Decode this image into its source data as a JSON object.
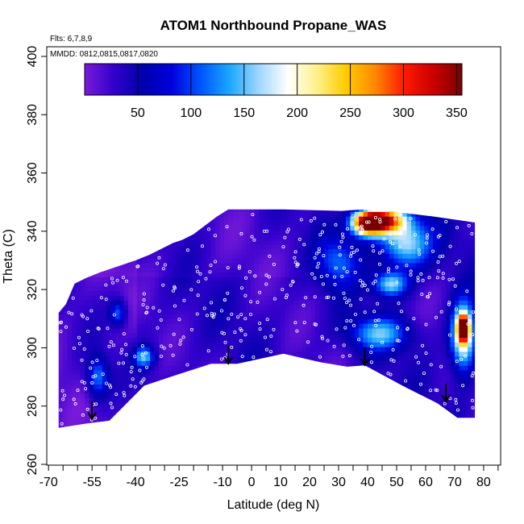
{
  "chart_data": {
    "type": "heatmap",
    "title": "ATOM1 Northbound Propane_WAS",
    "xlabel": "Latitude (deg N)",
    "ylabel": "Theta (C)",
    "xlim": [
      -70,
      85
    ],
    "ylim": [
      260,
      402
    ],
    "x_ticks": [
      "-70",
      "-55",
      "-40",
      "-25",
      "-10",
      "0",
      "10",
      "20",
      "30",
      "40",
      "50",
      "60",
      "70",
      "80"
    ],
    "x_tick_values": [
      -70,
      -55,
      -40,
      -25,
      -10,
      0,
      10,
      20,
      30,
      40,
      50,
      60,
      70,
      80
    ],
    "y_ticks": [
      "260",
      "280",
      "300",
      "320",
      "340",
      "360",
      "380",
      "400"
    ],
    "y_tick_values": [
      260,
      280,
      300,
      320,
      340,
      360,
      380,
      400
    ],
    "flights_label": "Flts: 6,7,8,9",
    "dates_label": "MMDD: 0812,0815,0817,0820",
    "colorbar": {
      "range": [
        0,
        355
      ],
      "ticks": [
        "50",
        "100",
        "150",
        "200",
        "250",
        "300",
        "350"
      ],
      "tick_values": [
        50,
        100,
        150,
        200,
        250,
        300,
        350
      ],
      "colors": [
        "#7a1bd9",
        "#3300cc",
        "#0000aa",
        "#0000dd",
        "#0055ff",
        "#1aa8ff",
        "#9fd6ff",
        "#ffffff",
        "#fff08a",
        "#ffcc00",
        "#ff8800",
        "#ff1a00",
        "#cc0000",
        "#7a0000"
      ]
    },
    "bottom_boundary": {
      "lat": [
        -66.5,
        -57,
        -49,
        -37,
        -25,
        -14,
        -5,
        11,
        24,
        33,
        39,
        52,
        64,
        71,
        77
      ],
      "theta": [
        272.5,
        274,
        275,
        287,
        291,
        294.5,
        294.5,
        298,
        295,
        293.5,
        294,
        287,
        281,
        276,
        276
      ]
    },
    "top_boundary": {
      "lat": [
        -66.5,
        -64,
        -61,
        -57,
        -52,
        -46,
        -40,
        -35,
        -31,
        -27,
        -24,
        -20,
        -16,
        -12,
        -8,
        11,
        31,
        38,
        47,
        55,
        63,
        70,
        77
      ],
      "theta": [
        312,
        315,
        322,
        324,
        326,
        328,
        330,
        332,
        334,
        336,
        337,
        339,
        342,
        345,
        347.5,
        347.5,
        347,
        347.5,
        347,
        346,
        345,
        344,
        343
      ]
    },
    "hotspots": [
      {
        "lat": 40,
        "theta": 343,
        "value": 320,
        "sx": 4,
        "sy": 3
      },
      {
        "lat": 46,
        "theta": 344,
        "value": 240,
        "sx": 5,
        "sy": 3
      },
      {
        "lat": 53,
        "theta": 336,
        "value": 150,
        "sx": 6,
        "sy": 6
      },
      {
        "lat": 48,
        "theta": 322,
        "value": 140,
        "sx": 4,
        "sy": 3
      },
      {
        "lat": 44,
        "theta": 305,
        "value": 110,
        "sx": 7,
        "sy": 4
      },
      {
        "lat": 73,
        "theta": 307,
        "value": 310,
        "sx": 1.3,
        "sy": 3
      },
      {
        "lat": 73,
        "theta": 304,
        "value": 200,
        "sx": 3,
        "sy": 8
      },
      {
        "lat": -37,
        "theta": 297,
        "value": 120,
        "sx": 2.5,
        "sy": 2.5
      },
      {
        "lat": -53,
        "theta": 290,
        "value": 100,
        "sx": 2.5,
        "sy": 5
      },
      {
        "lat": -46,
        "theta": 312,
        "value": 90,
        "sx": 2,
        "sy": 3
      },
      {
        "lat": 30,
        "theta": 330,
        "value": 80,
        "sx": 5,
        "sy": 6
      }
    ],
    "arrows": [
      {
        "lat": -55,
        "theta": 280
      },
      {
        "lat": -8,
        "theta": 299
      },
      {
        "lat": 39,
        "theta": 298.5
      },
      {
        "lat": 67,
        "theta": 286
      }
    ]
  }
}
